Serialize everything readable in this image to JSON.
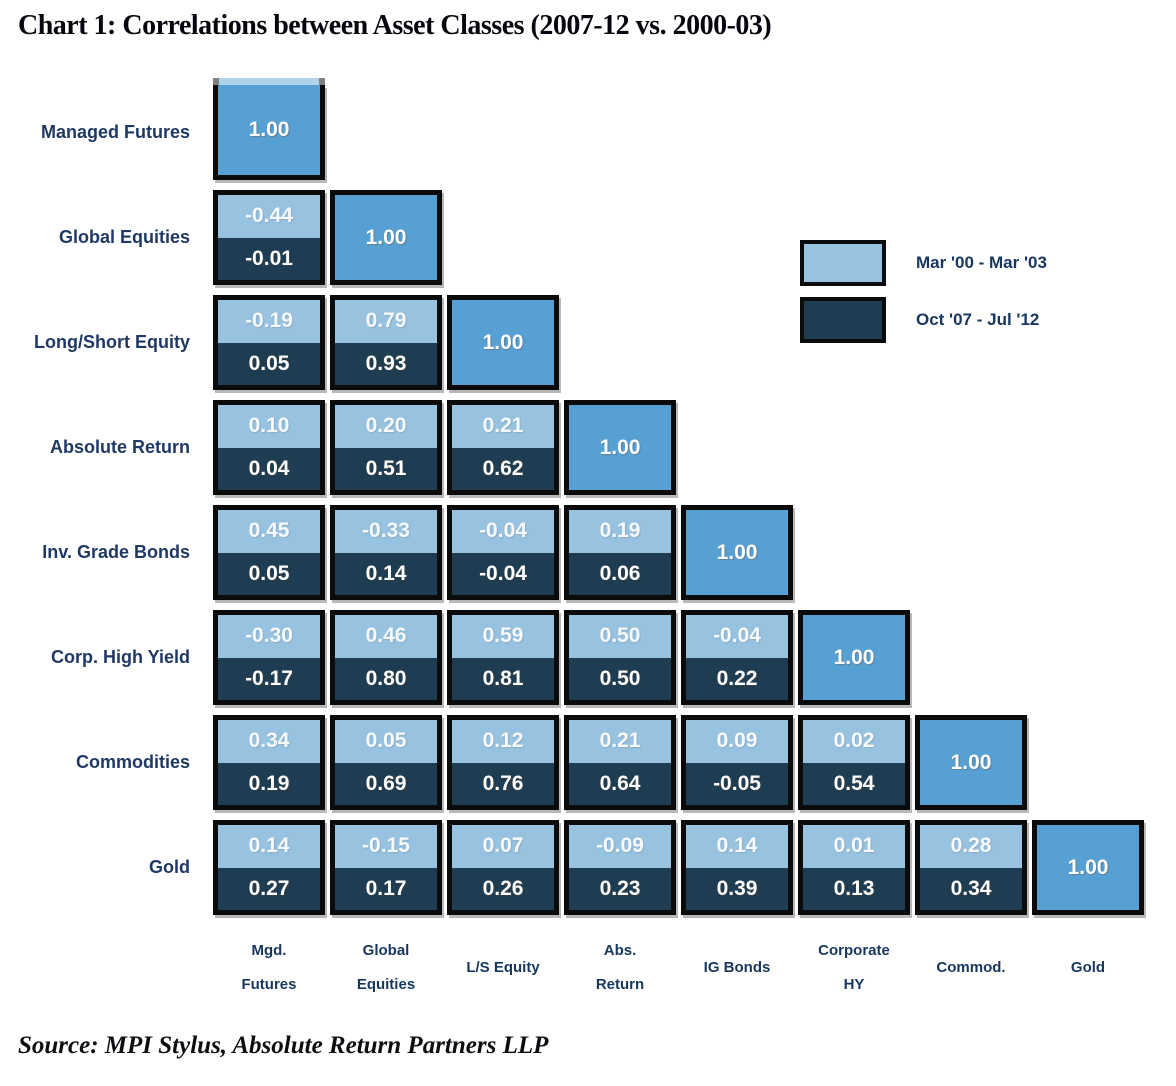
{
  "title": "Chart 1:  Correlations between Asset Classes (2007-12 vs. 2000-03)",
  "source": "Source: MPI Stylus, Absolute Return Partners LLP",
  "legend": {
    "items": [
      {
        "label": "Mar '00 - Mar '03",
        "color": "#97C2E0"
      },
      {
        "label": "Oct '07 - Jul '12",
        "color": "#1E3C52"
      }
    ]
  },
  "colors": {
    "diagonal": "#57A0D3",
    "early_period": "#97C2E0",
    "late_period": "#1E3C52",
    "cell_border": "#0b0b0b",
    "row_label_text": "#1F3864",
    "col_label_text": "#17375E",
    "top_strip": "#AFD3EB",
    "top_strip_caps": "#808080"
  },
  "chart_data": {
    "type": "heatmap",
    "title": "Correlations between Asset Classes (2007-12 vs. 2000-03)",
    "legend_position": "upper-right",
    "series_names": [
      "Mar '00 - Mar '03",
      "Oct '07 - Jul '12"
    ],
    "row_labels": [
      "Managed Futures",
      "Global Equities",
      "Long/Short Equity",
      "Absolute Return",
      "Inv. Grade Bonds",
      "Corp. High Yield",
      "Commodities",
      "Gold"
    ],
    "col_labels": [
      "Mgd.\nFutures",
      "Global\nEquities",
      "L/S Equity",
      "Abs.\nReturn",
      "IG Bonds",
      "Corporate\nHY",
      "Commod.",
      "Gold"
    ],
    "rows": [
      {
        "label": "Managed Futures",
        "cells": [
          {
            "value": "1.00"
          }
        ]
      },
      {
        "label": "Global Equities",
        "cells": [
          {
            "early": "-0.44",
            "late": "-0.01"
          },
          {
            "value": "1.00"
          }
        ]
      },
      {
        "label": "Long/Short Equity",
        "cells": [
          {
            "early": "-0.19",
            "late": "0.05"
          },
          {
            "early": "0.79",
            "late": "0.93"
          },
          {
            "value": "1.00"
          }
        ]
      },
      {
        "label": "Absolute Return",
        "cells": [
          {
            "early": "0.10",
            "late": "0.04"
          },
          {
            "early": "0.20",
            "late": "0.51"
          },
          {
            "early": "0.21",
            "late": "0.62"
          },
          {
            "value": "1.00"
          }
        ]
      },
      {
        "label": "Inv. Grade Bonds",
        "cells": [
          {
            "early": "0.45",
            "late": "0.05"
          },
          {
            "early": "-0.33",
            "late": "0.14"
          },
          {
            "early": "-0.04",
            "late": "-0.04"
          },
          {
            "early": "0.19",
            "late": "0.06"
          },
          {
            "value": "1.00"
          }
        ]
      },
      {
        "label": "Corp. High Yield",
        "cells": [
          {
            "early": "-0.30",
            "late": "-0.17"
          },
          {
            "early": "0.46",
            "late": "0.80"
          },
          {
            "early": "0.59",
            "late": "0.81"
          },
          {
            "early": "0.50",
            "late": "0.50"
          },
          {
            "early": "-0.04",
            "late": "0.22"
          },
          {
            "value": "1.00"
          }
        ]
      },
      {
        "label": "Commodities",
        "cells": [
          {
            "early": "0.34",
            "late": "0.19"
          },
          {
            "early": "0.05",
            "late": "0.69"
          },
          {
            "early": "0.12",
            "late": "0.76"
          },
          {
            "early": "0.21",
            "late": "0.64"
          },
          {
            "early": "0.09",
            "late": "-0.05"
          },
          {
            "early": "0.02",
            "late": "0.54"
          },
          {
            "value": "1.00"
          }
        ]
      },
      {
        "label": "Gold",
        "cells": [
          {
            "early": "0.14",
            "late": "0.27"
          },
          {
            "early": "-0.15",
            "late": "0.17"
          },
          {
            "early": "0.07",
            "late": "0.26"
          },
          {
            "early": "-0.09",
            "late": "0.23"
          },
          {
            "early": "0.14",
            "late": "0.39"
          },
          {
            "early": "0.01",
            "late": "0.13"
          },
          {
            "early": "0.28",
            "late": "0.34"
          },
          {
            "value": "1.00"
          }
        ]
      }
    ]
  }
}
